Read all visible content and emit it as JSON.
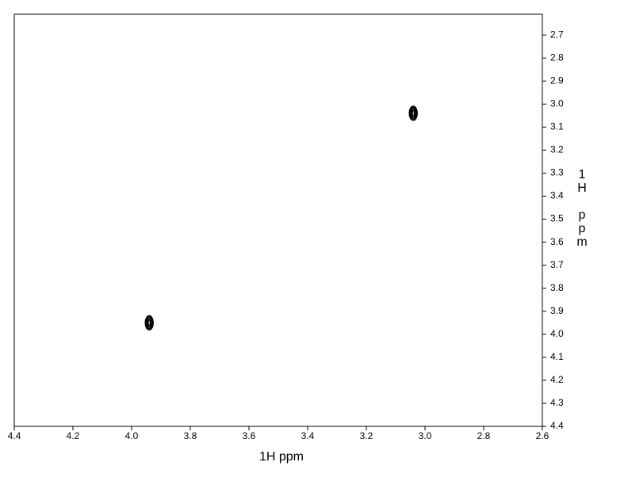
{
  "chart_data": {
    "type": "scatter",
    "x_label": "1H ppm",
    "y_label": "1H ppm",
    "x": [
      3.04,
      3.94
    ],
    "series": [
      {
        "color": "#000000",
        "values": [
          3.04,
          3.95
        ]
      }
    ],
    "xlim": [
      4.4,
      2.6
    ],
    "xticks": [
      4.4,
      4.2,
      {
        "value": 4,
        "label": "4.0"
      },
      3.8,
      3.6,
      3.4,
      3.2,
      {
        "value": 3,
        "label": "3.0"
      },
      2.8,
      2.6
    ],
    "ylim": [
      2.61,
      4.4
    ],
    "yticks": [
      2.7,
      2.8,
      2.9,
      {
        "value": 3,
        "label": "3.0"
      },
      3.1,
      3.2,
      3.3,
      3.4,
      3.5,
      3.6,
      3.7,
      3.8,
      3.9,
      {
        "value": 4,
        "label": "4.0"
      },
      4.1,
      4.2,
      4.3,
      4.4
    ],
    "grid": false
  }
}
